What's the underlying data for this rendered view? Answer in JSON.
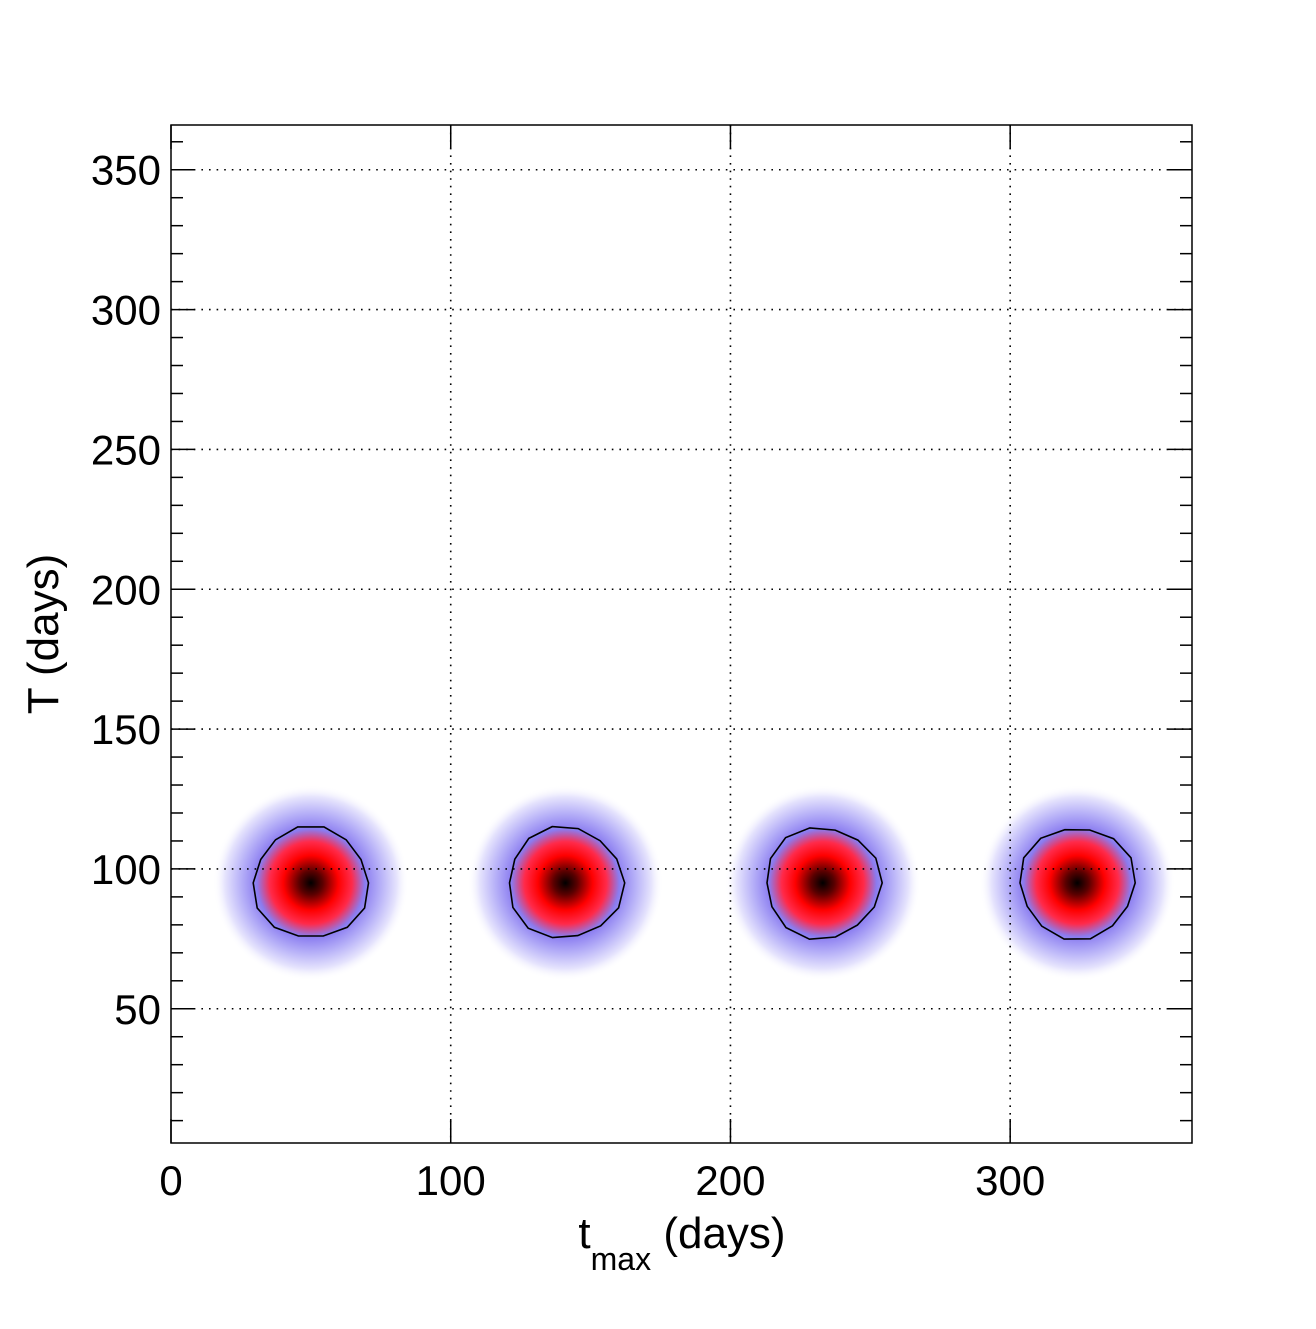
{
  "chart_data": {
    "type": "heatmap",
    "title": "",
    "xlabel": {
      "main": "t",
      "sub": "max",
      "rest": " (days)"
    },
    "ylabel": "T (days)",
    "xlim": [
      0,
      365
    ],
    "ylim": [
      2,
      366
    ],
    "xticks": [
      0,
      100,
      200,
      300
    ],
    "xtick_labels": [
      "0",
      "100",
      "200",
      "300"
    ],
    "yticks": [
      50,
      100,
      150,
      200,
      250,
      300,
      350
    ],
    "ytick_labels": [
      "50",
      "100",
      "150",
      "200",
      "250",
      "300",
      "350"
    ],
    "grid": true,
    "colormap": [
      "#ffffff",
      "#8a80f0",
      "#ff0000",
      "#000000"
    ],
    "peaks": [
      {
        "tmax": 50,
        "T": 95
      },
      {
        "tmax": 141,
        "T": 95
      },
      {
        "tmax": 233,
        "T": 95
      },
      {
        "tmax": 324,
        "T": 95
      }
    ],
    "contour_radius_days": 20
  }
}
